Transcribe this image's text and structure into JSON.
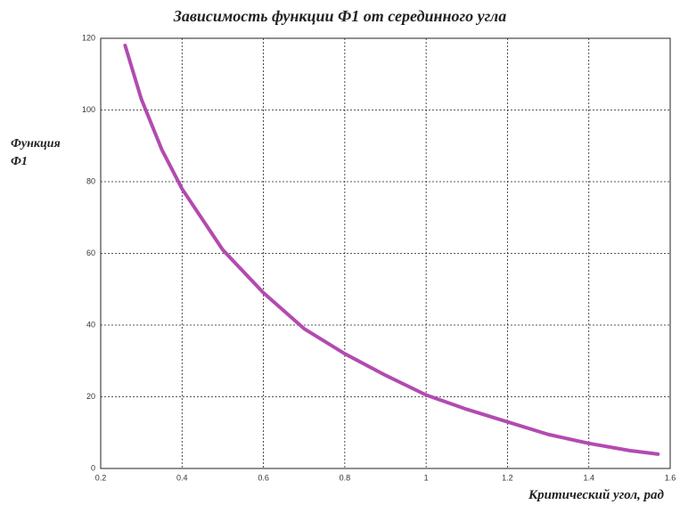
{
  "chart_data": {
    "type": "line",
    "title": "Зависимость функции Ф1 от серединного угла",
    "x_label": "Критический угол, рад",
    "y_label": "Функция Ф1",
    "x": [
      0.26,
      0.3,
      0.35,
      0.4,
      0.5,
      0.6,
      0.7,
      0.8,
      0.9,
      1.0,
      1.1,
      1.2,
      1.3,
      1.4,
      1.5,
      1.57
    ],
    "series": [
      {
        "name": "Ф1",
        "color": "#b24bb0",
        "values": [
          118,
          103,
          89,
          78,
          61,
          49,
          39,
          32,
          26,
          20.5,
          16.5,
          13,
          9.5,
          7,
          5,
          4
        ]
      }
    ],
    "xlim": [
      0.2,
      1.6
    ],
    "xticks": [
      0.2,
      0.4,
      0.6,
      0.8,
      1,
      1.2,
      1.4,
      1.6
    ],
    "ylim": [
      0,
      120
    ],
    "yticks": [
      0,
      20,
      40,
      60,
      80,
      100,
      120
    ],
    "grid": true
  }
}
